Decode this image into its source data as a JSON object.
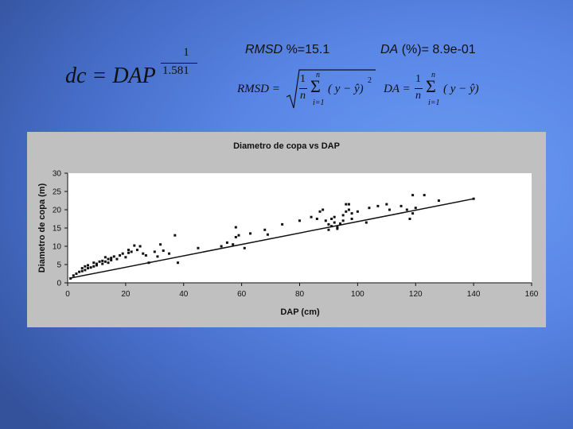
{
  "stats": {
    "rmsd_name": "RMSD",
    "rmsd_value": "%=15.1",
    "da_name": "DA",
    "da_value": "(%)= 8.9e-01"
  },
  "formulas": {
    "model": {
      "lhs": "dc = DAP",
      "exp_num": "1",
      "exp_den": "1.581"
    },
    "rmsd": {
      "name": "RMSD =",
      "frac_num": "1",
      "frac_den": "n",
      "sum_top": "n",
      "sum_bot": "i=1",
      "term": "( y − ŷ)",
      "power": "2"
    },
    "da": {
      "name": "DA =",
      "frac_num": "1",
      "frac_den": "n",
      "sum_top": "n",
      "sum_bot": "i=1",
      "term": "( y − ŷ)"
    }
  },
  "chart_data": {
    "type": "scatter",
    "title": "Diametro de copa vs DAP",
    "xlabel": "DAP (cm)",
    "ylabel": "Diametro de copa (m)",
    "xlim": [
      0,
      160
    ],
    "ylim": [
      0,
      30
    ],
    "xticks": [
      0,
      20,
      40,
      60,
      80,
      100,
      120,
      140,
      160
    ],
    "yticks": [
      0,
      5,
      10,
      15,
      20,
      25,
      30
    ],
    "grid": false,
    "legend": "none",
    "colors": {
      "background": "#c0c0c0",
      "plot_area": "#ffffff",
      "points": "#111111",
      "fit_line": "#111111"
    },
    "series": [
      {
        "type": "scatter",
        "x": [
          1,
          2,
          3,
          4,
          5,
          5,
          6,
          6,
          7,
          7,
          8,
          9,
          9,
          10,
          10,
          11,
          12,
          12,
          13,
          13,
          14,
          14,
          15,
          15,
          16,
          17,
          18,
          19,
          20,
          21,
          21,
          22,
          23,
          24,
          25,
          26,
          27,
          28,
          30,
          31,
          32,
          33,
          35,
          37,
          38,
          45,
          53,
          55,
          57,
          58,
          58,
          59,
          61,
          63,
          68,
          69,
          74,
          80,
          84,
          86,
          87,
          88,
          89,
          90,
          90,
          91,
          91,
          92,
          92,
          93,
          93,
          94,
          95,
          95,
          96,
          96,
          97,
          97,
          98,
          98,
          100,
          103,
          104,
          107,
          110,
          111,
          115,
          117,
          118,
          119,
          119,
          120,
          123,
          128,
          140
        ],
        "y": [
          1.2,
          2,
          2.5,
          3,
          3.2,
          4,
          3.5,
          4.5,
          4.8,
          4,
          4.2,
          5.5,
          4.5,
          5.2,
          4.8,
          5.8,
          5.2,
          6,
          5.8,
          7,
          5.5,
          6.5,
          6.2,
          6.8,
          7.2,
          6.5,
          7.5,
          8,
          7,
          8.2,
          9,
          8.5,
          10.2,
          9,
          10,
          8,
          7.5,
          5.5,
          8.5,
          7.2,
          10.5,
          8.8,
          8,
          13,
          5.5,
          9.5,
          10,
          11,
          10.5,
          12.5,
          15.2,
          13,
          9.5,
          13.5,
          14.5,
          13.2,
          16,
          17,
          18,
          17.5,
          19.5,
          20,
          17,
          16,
          14.5,
          17.5,
          15.5,
          16.5,
          18,
          15.2,
          14.8,
          16.2,
          18.5,
          17,
          21.5,
          19.5,
          21.5,
          20,
          19,
          17.5,
          19.5,
          16.5,
          20.5,
          21,
          21.5,
          20,
          21,
          20,
          17.5,
          19,
          24,
          20.5,
          24,
          22.5,
          23
        ]
      },
      {
        "type": "line",
        "x": [
          1,
          140
        ],
        "y": [
          1.3,
          23.0
        ]
      }
    ]
  }
}
